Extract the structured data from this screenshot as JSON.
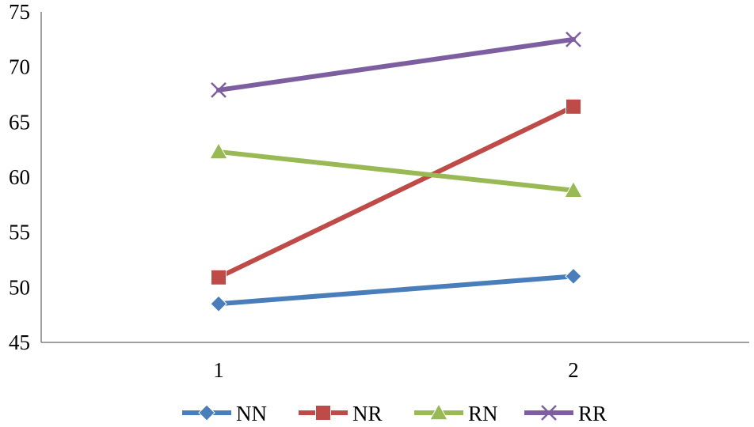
{
  "chart_data": {
    "type": "line",
    "title": "",
    "xlabel": "",
    "ylabel": "",
    "categories": [
      "1",
      "2"
    ],
    "ylim": [
      45,
      75
    ],
    "yticks": [
      45,
      50,
      55,
      60,
      65,
      70,
      75
    ],
    "grid": false,
    "legend": "bottom",
    "series": [
      {
        "name": "NN",
        "values": [
          48.5,
          51.0
        ],
        "color": "#4a7ebb",
        "marker": "diamond"
      },
      {
        "name": "NR",
        "values": [
          50.9,
          66.4
        ],
        "color": "#be4b48",
        "marker": "square"
      },
      {
        "name": "RN",
        "values": [
          62.3,
          58.8
        ],
        "color": "#98b954",
        "marker": "triangle"
      },
      {
        "name": "RR",
        "values": [
          67.9,
          72.5
        ],
        "color": "#7d5fa0",
        "marker": "x"
      }
    ]
  }
}
